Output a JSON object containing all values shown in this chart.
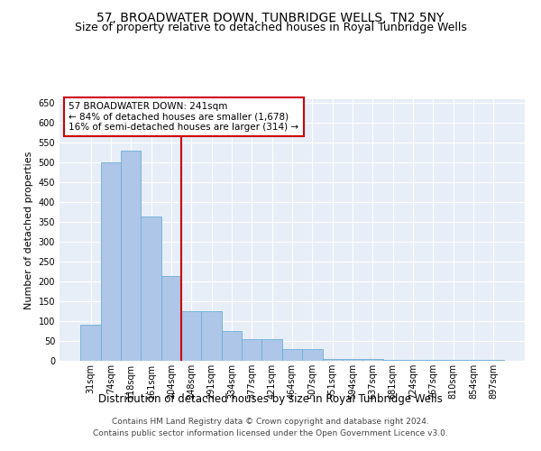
{
  "title": "57, BROADWATER DOWN, TUNBRIDGE WELLS, TN2 5NY",
  "subtitle": "Size of property relative to detached houses in Royal Tunbridge Wells",
  "xlabel": "Distribution of detached houses by size in Royal Tunbridge Wells",
  "ylabel": "Number of detached properties",
  "footer1": "Contains HM Land Registry data © Crown copyright and database right 2024.",
  "footer2": "Contains public sector information licensed under the Open Government Licence v3.0.",
  "categories": [
    "31sqm",
    "74sqm",
    "118sqm",
    "161sqm",
    "204sqm",
    "248sqm",
    "291sqm",
    "334sqm",
    "377sqm",
    "421sqm",
    "464sqm",
    "507sqm",
    "551sqm",
    "594sqm",
    "637sqm",
    "681sqm",
    "724sqm",
    "767sqm",
    "810sqm",
    "854sqm",
    "897sqm"
  ],
  "values": [
    90,
    500,
    530,
    365,
    215,
    125,
    125,
    75,
    55,
    55,
    30,
    30,
    5,
    5,
    5,
    2,
    2,
    2,
    2,
    2,
    2
  ],
  "bar_color": "#aec6e8",
  "bar_edge_color": "#6baed6",
  "vline_x_index": 5,
  "vline_color": "#cc0000",
  "annotation_text": "57 BROADWATER DOWN: 241sqm\n← 84% of detached houses are smaller (1,678)\n16% of semi-detached houses are larger (314) →",
  "annotation_box_color": "#cc0000",
  "ylim": [
    0,
    660
  ],
  "yticks": [
    0,
    50,
    100,
    150,
    200,
    250,
    300,
    350,
    400,
    450,
    500,
    550,
    600,
    650
  ],
  "background_color": "#e8eef7",
  "grid_color": "#ffffff",
  "title_fontsize": 10,
  "subtitle_fontsize": 9,
  "xlabel_fontsize": 8.5,
  "ylabel_fontsize": 8,
  "tick_fontsize": 7,
  "footer_fontsize": 6.5,
  "annotation_fontsize": 7.5
}
